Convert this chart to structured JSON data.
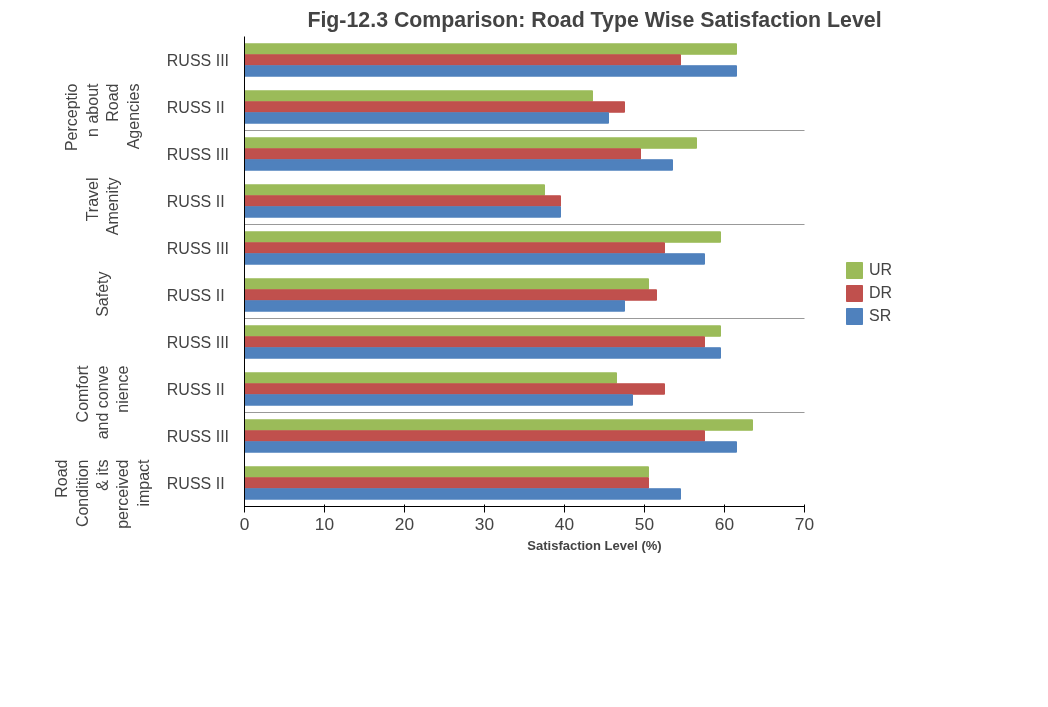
{
  "chart_data": {
    "type": "bar",
    "orientation": "horizontal",
    "title": "Fig-12.3 Comparison: Road Type Wise Satisfaction Level",
    "xlabel": "Satisfaction Level (%)",
    "categories": [
      "RUSS  III",
      "RUSS   II",
      "RUSS  III",
      "RUSS   II",
      "RUSS  III",
      "RUSS   II",
      "RUSS  III",
      "RUSS   II",
      "RUSS  III",
      "RUSS   II"
    ],
    "annotations": [
      "Perception about Road Agencies",
      "Travel Amenity",
      "Safety",
      "Comfort and convenience",
      "Road Condition & its perceived impact"
    ],
    "series": [
      {
        "name": "UR",
        "color": "#9bbb59",
        "values": [
          61.5,
          43.5,
          56.5,
          37.5,
          59.5,
          50.5,
          59.5,
          46.5,
          63.5,
          50.5
        ]
      },
      {
        "name": "DR",
        "color": "#c0504d",
        "values": [
          54.5,
          47.5,
          49.5,
          39.5,
          52.5,
          51.5,
          57.5,
          52.5,
          57.5,
          50.5
        ]
      },
      {
        "name": "SR",
        "color": "#4f81bd",
        "values": [
          61.5,
          45.5,
          53.5,
          39.5,
          57.5,
          47.5,
          59.5,
          48.5,
          61.5,
          54.5
        ]
      }
    ],
    "xlim": [
      0,
      70
    ],
    "xticks": [
      0,
      10,
      20,
      30,
      40,
      50,
      60,
      70
    ],
    "grid": false,
    "legend": "right"
  }
}
